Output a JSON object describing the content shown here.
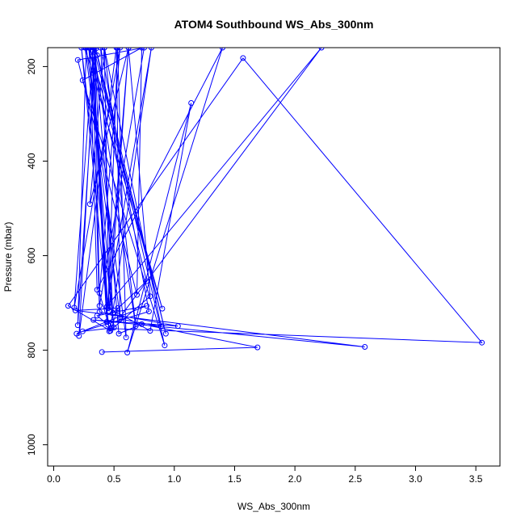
{
  "chart_data": {
    "type": "line",
    "title": "ATOM4 Southbound WS_Abs_300nm",
    "xlabel": "WS_Abs_300nm",
    "ylabel": "Pressure (mbar)",
    "xlim": [
      -0.05,
      3.7
    ],
    "ylim": [
      1045,
      160
    ],
    "y_reversed": true,
    "x_ticks": [
      "0.0",
      "0.5",
      "1.0",
      "1.5",
      "2.0",
      "2.5",
      "3.0",
      "3.5"
    ],
    "y_ticks": [
      "200",
      "400",
      "600",
      "800",
      "1000"
    ],
    "x_tick_values": [
      0,
      0.5,
      1.0,
      1.5,
      2.0,
      2.5,
      3.0,
      3.5
    ],
    "y_tick_values": [
      200,
      400,
      600,
      800,
      1000
    ],
    "grid": false,
    "line_color": "#0000ff",
    "series": [
      {
        "points": [
          [
            0.19,
            765
          ],
          [
            0.77,
            706
          ],
          [
            0.36,
            727
          ],
          [
            0.45,
            746
          ],
          [
            0.32,
            166
          ],
          [
            0.45,
            711
          ],
          [
            0.53,
            160
          ],
          [
            0.6,
            773
          ],
          [
            0.27,
            160
          ],
          [
            0.2,
            747
          ],
          [
            0.35,
            162
          ],
          [
            0.93,
            765
          ],
          [
            0.33,
            160
          ],
          [
            0.36,
            176
          ],
          [
            0.92,
            790
          ],
          [
            0.24,
            229
          ],
          [
            0.73,
            160
          ],
          [
            0.69,
            683
          ],
          [
            0.2,
            186
          ],
          [
            0.75,
            160
          ],
          [
            0.38,
            706
          ],
          [
            0.34,
            160
          ],
          [
            0.21,
            770
          ],
          [
            0.52,
            160
          ],
          [
            0.55,
            734
          ],
          [
            0.89,
            750
          ],
          [
            0.42,
            160
          ],
          [
            0.46,
            718
          ],
          [
            0.62,
            160
          ],
          [
            0.3,
            491
          ],
          [
            0.42,
            160
          ],
          [
            0.68,
            749
          ],
          [
            0.33,
            160
          ],
          [
            0.17,
            710
          ],
          [
            0.55,
            160
          ],
          [
            0.38,
            679
          ],
          [
            0.47,
            759
          ],
          [
            0.12,
            706
          ],
          [
            1.57,
            182
          ],
          [
            3.55,
            784
          ],
          [
            0.47,
            754
          ],
          [
            0.81,
            160
          ],
          [
            0.44,
            708
          ],
          [
            0.8,
            759
          ],
          [
            1.14,
            277
          ],
          [
            0.61,
            805
          ],
          [
            1.4,
            160
          ],
          [
            0.36,
            672
          ],
          [
            0.3,
            160
          ],
          [
            0.9,
            712
          ],
          [
            0.26,
            160
          ],
          [
            0.55,
            730
          ],
          [
            2.22,
            160
          ],
          [
            0.45,
            704
          ],
          [
            0.62,
            160
          ],
          [
            0.8,
            686
          ],
          [
            0.46,
            760
          ],
          [
            0.23,
            160
          ],
          [
            0.5,
            752
          ],
          [
            0.29,
            160
          ],
          [
            0.77,
            654
          ],
          [
            0.49,
            722
          ],
          [
            0.39,
            160
          ],
          [
            0.79,
            718
          ],
          [
            0.24,
            760
          ],
          [
            0.48,
            753
          ],
          [
            0.53,
            711
          ],
          [
            0.18,
            716
          ],
          [
            2.58,
            793
          ],
          [
            0.33,
            736
          ],
          [
            1.03,
            749
          ],
          [
            0.38,
            719
          ],
          [
            0.32,
            178
          ],
          [
            0.44,
            740
          ],
          [
            0.34,
            160
          ],
          [
            0.54,
            765
          ],
          [
            0.73,
            745
          ],
          [
            1.69,
            794
          ],
          [
            0.4,
            804
          ]
        ]
      }
    ]
  }
}
